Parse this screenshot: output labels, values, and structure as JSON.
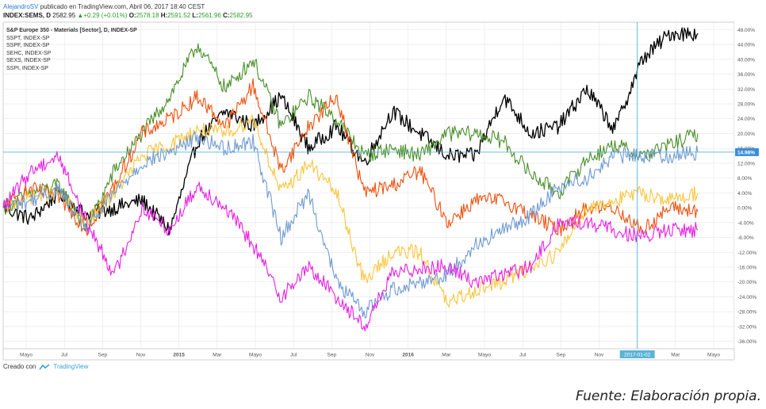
{
  "header": {
    "author": "AlejandroSV",
    "published": " publicado en TradingView.com, Abril 06, 2017 18:40 CEST",
    "symbol": "INDEX:SEMS, D",
    "last": "2582.95",
    "change": "+0.29 (+0.01%)",
    "o_label": "O:",
    "o_value": "2578.18",
    "h_label": "H:",
    "h_value": "2591.52",
    "l_label": "L:",
    "l_value": "2561.96",
    "c_label": "C:",
    "c_value": "2582.95"
  },
  "legend": {
    "title": "S&P Europe 350 - Materials [Sector], D, INDEX-SP",
    "items": [
      "SSPT, INDEX-SP",
      "SSPF, INDEX-SP",
      "SEHC, INDEX-SP",
      "SEXS, INDEX-SP",
      "SSPI, INDEX-SP"
    ]
  },
  "footer": {
    "created_with": "Creado con",
    "brand": "TradingView"
  },
  "source_note": "Fuente: Elaboración propia.",
  "colors": {
    "black": "#000000",
    "green": "#4a8f2a",
    "orange": "#ef4f0c",
    "yellow": "#f9c53c",
    "blue": "#6f9ad2",
    "magenta": "#e81fe2",
    "crosshair": "#5ab4d6",
    "grid": "#e6e6e6",
    "axis_text": "#555555"
  },
  "chart_data": {
    "type": "line",
    "x_ticks": [
      "Mayo",
      "Jul",
      "Sep",
      "Nov",
      "2015",
      "Mar",
      "Mayo",
      "Jul",
      "Sep",
      "Nov",
      "2016",
      "Mar",
      "Mayo",
      "Jul",
      "Sep",
      "Nov",
      "2017-01-02",
      "Mar",
      "Mayo"
    ],
    "y_ticks": [
      "48.00%",
      "44.00%",
      "40.00%",
      "36.00%",
      "32.00%",
      "28.00%",
      "24.00%",
      "20.00%",
      "16.00%",
      "12.00%",
      "8.00%",
      "4.00%",
      "0.00%",
      "-4.00%",
      "-8.00%",
      "-12.00%",
      "-16.00%",
      "-20.00%",
      "-24.00%",
      "-28.00%",
      "-32.00%",
      "-36.00%"
    ],
    "ylim": [
      -38,
      50
    ],
    "current_value_label": "14.98%",
    "current_value": 14.98,
    "crosshair_x_label": "2017-01-02",
    "series": [
      {
        "color": "#000000",
        "values": [
          0,
          -3,
          4,
          -2,
          0,
          2,
          -6,
          18,
          26,
          22,
          30,
          16,
          22,
          12,
          26,
          20,
          14,
          14,
          30,
          20,
          22,
          32,
          21,
          40,
          47,
          47
        ]
      },
      {
        "color": "#4a8f2a",
        "values": [
          0,
          4,
          6,
          -6,
          10,
          20,
          30,
          44,
          32,
          40,
          22,
          30,
          24,
          14,
          16,
          14,
          20,
          20,
          18,
          9,
          4,
          13,
          17,
          14,
          17,
          20
        ]
      },
      {
        "color": "#ef4f0c",
        "values": [
          0,
          5,
          3,
          -6,
          6,
          20,
          24,
          30,
          22,
          33,
          10,
          22,
          30,
          4,
          6,
          10,
          -4,
          2,
          2,
          -2,
          -6,
          0,
          0,
          -6,
          0,
          -1
        ]
      },
      {
        "color": "#f9c53c",
        "values": [
          0,
          3,
          4,
          -4,
          4,
          14,
          17,
          21,
          20,
          24,
          4,
          12,
          4,
          -20,
          -12,
          -12,
          -26,
          -22,
          -20,
          -16,
          -12,
          0,
          2,
          4,
          2,
          4
        ]
      },
      {
        "color": "#6f9ad2",
        "values": [
          0,
          2,
          5,
          -6,
          4,
          12,
          15,
          19,
          16,
          18,
          -8,
          4,
          -20,
          -28,
          -22,
          -20,
          -18,
          -10,
          -6,
          -2,
          6,
          8,
          14,
          14,
          14,
          15
        ]
      },
      {
        "color": "#e81fe2",
        "values": [
          0,
          10,
          14,
          -4,
          -18,
          0,
          -6,
          6,
          0,
          -10,
          -24,
          -16,
          -24,
          -32,
          -18,
          -16,
          -16,
          -20,
          -18,
          -16,
          -4,
          -4,
          -6,
          -8,
          -6,
          -6
        ]
      }
    ]
  }
}
